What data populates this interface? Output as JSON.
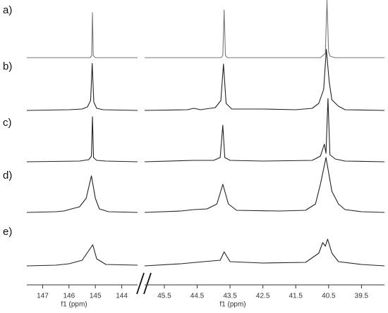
{
  "chart_data": [
    {
      "type": "line",
      "xlabel": "f1 (ppm)",
      "xlim": [
        147.6,
        143.4
      ],
      "xticks": [
        147,
        146,
        145,
        144
      ],
      "series": [
        {
          "name": "a)",
          "color": "#777777",
          "x": [
            147.6,
            145.2,
            145.14,
            145.11,
            145.08,
            145.0,
            143.4
          ],
          "values": [
            0,
            0,
            3,
            64,
            3,
            0,
            0
          ]
        },
        {
          "name": "b)",
          "color": "#222222",
          "x": [
            147.6,
            146.0,
            145.5,
            145.3,
            145.18,
            145.12,
            145.06,
            144.95,
            144.7,
            143.4
          ],
          "values": [
            0,
            1,
            2,
            5,
            14,
            67,
            12,
            3,
            1,
            0
          ]
        },
        {
          "name": "c)",
          "color": "#222222",
          "x": [
            147.6,
            145.6,
            145.25,
            145.15,
            145.11,
            145.07,
            144.95,
            144.6,
            143.4
          ],
          "values": [
            0,
            1,
            3,
            8,
            64,
            6,
            2,
            1,
            0
          ]
        },
        {
          "name": "d)",
          "color": "#222222",
          "x": [
            147.6,
            146.5,
            146.2,
            145.6,
            145.35,
            145.15,
            145.0,
            144.85,
            144.5,
            143.4
          ],
          "values": [
            0,
            1,
            2,
            8,
            20,
            52,
            20,
            5,
            1,
            0
          ]
        },
        {
          "name": "e)",
          "color": "#222222",
          "x": [
            147.6,
            146.5,
            146.0,
            145.5,
            145.1,
            144.95,
            144.6,
            143.4
          ],
          "values": [
            0,
            1,
            3,
            8,
            30,
            10,
            2,
            1
          ]
        }
      ]
    },
    {
      "type": "line",
      "xlabel": "f1 (ppm)",
      "xlim": [
        46.1,
        38.8
      ],
      "xticks": [
        45.5,
        44.5,
        43.5,
        42.5,
        41.5,
        40.5,
        39.5
      ],
      "series": [
        {
          "color": "#777777",
          "x": [
            46.1,
            43.78,
            43.72,
            43.68,
            43.64,
            43.58,
            40.75,
            40.65,
            40.6,
            40.55,
            40.5,
            40.45,
            40.3,
            38.8
          ],
          "values": [
            0,
            0,
            3,
            68,
            3,
            0,
            0,
            4,
            6,
            82,
            8,
            2,
            0,
            0
          ]
        },
        {
          "color": "#222222",
          "x": [
            46.1,
            44.8,
            44.6,
            44.4,
            43.95,
            43.78,
            43.7,
            43.62,
            43.45,
            42.5,
            41.5,
            41.0,
            40.8,
            40.65,
            40.57,
            40.48,
            40.4,
            40.2,
            40.0,
            38.8
          ],
          "values": [
            0,
            1,
            3,
            1,
            4,
            14,
            66,
            10,
            2,
            2,
            1,
            3,
            10,
            30,
            87,
            40,
            15,
            6,
            1,
            0
          ]
        },
        {
          "color": "#222222",
          "x": [
            46.1,
            44.6,
            44.0,
            43.8,
            43.72,
            43.66,
            43.5,
            42.5,
            41.0,
            40.75,
            40.63,
            40.58,
            40.52,
            40.46,
            40.3,
            40.0,
            38.8
          ],
          "values": [
            0,
            2,
            2,
            6,
            52,
            6,
            2,
            1,
            2,
            8,
            25,
            12,
            90,
            10,
            4,
            1,
            0
          ]
        },
        {
          "color": "#222222",
          "x": [
            46.1,
            45.0,
            44.6,
            44.2,
            43.9,
            43.72,
            43.55,
            43.3,
            42.0,
            41.2,
            40.9,
            40.75,
            40.58,
            40.4,
            40.2,
            40.0,
            39.5,
            38.8
          ],
          "values": [
            0,
            2,
            4,
            5,
            12,
            40,
            12,
            3,
            2,
            3,
            12,
            40,
            78,
            30,
            12,
            4,
            1,
            0
          ]
        },
        {
          "color": "#222222",
          "x": [
            46.1,
            45.0,
            44.3,
            43.8,
            43.68,
            43.5,
            42.5,
            41.2,
            40.8,
            40.68,
            40.6,
            40.53,
            40.4,
            40.2,
            39.5,
            38.8
          ],
          "values": [
            0,
            3,
            6,
            8,
            20,
            6,
            4,
            5,
            18,
            33,
            28,
            38,
            18,
            6,
            2,
            0
          ]
        }
      ]
    }
  ]
}
